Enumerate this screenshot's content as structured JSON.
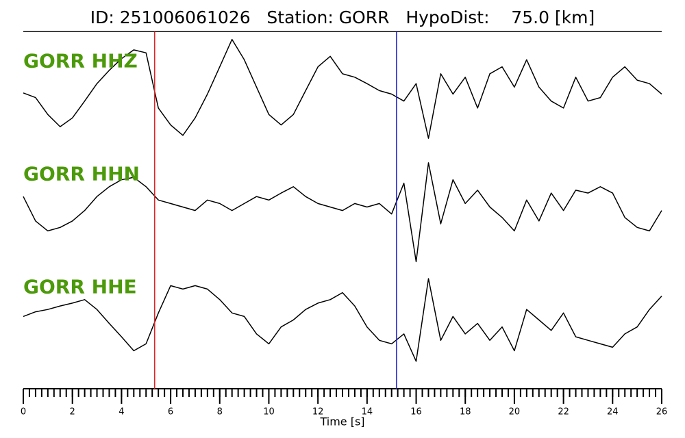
{
  "chart_data": {
    "type": "line",
    "title": "ID: 251006061026   Station: GORR   HypoDist:    75.0 [km]",
    "x_label": "Time [s]",
    "xlim": [
      0,
      26
    ],
    "xticks": [
      0,
      2,
      4,
      6,
      8,
      10,
      12,
      14,
      16,
      18,
      20,
      22,
      24,
      26
    ],
    "xminor_step": 0.25,
    "ylim": [
      -1,
      1
    ],
    "label_color": "#4c9a0a",
    "vlines": [
      {
        "x": 5.35,
        "color": "#e02020"
      },
      {
        "x": 15.2,
        "color": "#1f1fd0"
      }
    ],
    "x": [
      0,
      0.5,
      1,
      1.5,
      2,
      2.5,
      3,
      3.5,
      4,
      4.5,
      5,
      5.5,
      6,
      6.5,
      7,
      7.5,
      8,
      8.5,
      9,
      9.5,
      10,
      10.5,
      11,
      11.5,
      12,
      12.5,
      13,
      13.5,
      14,
      14.5,
      15,
      15.5,
      16,
      16.5,
      17,
      17.5,
      18,
      18.5,
      19,
      19.5,
      20,
      20.5,
      21,
      21.5,
      22,
      22.5,
      23,
      23.5,
      24,
      24.5,
      25,
      25.5,
      26
    ],
    "series": [
      {
        "name": "GORR HHZ",
        "color": "#000000",
        "values": [
          0.02,
          -0.06,
          -0.35,
          -0.56,
          -0.41,
          -0.12,
          0.18,
          0.41,
          0.61,
          0.76,
          0.71,
          -0.24,
          -0.53,
          -0.71,
          -0.41,
          0,
          0.47,
          0.94,
          0.59,
          0.12,
          -0.35,
          -0.53,
          -0.35,
          0.06,
          0.47,
          0.65,
          0.35,
          0.29,
          0.18,
          0.06,
          0,
          -0.12,
          0.18,
          -0.76,
          0.35,
          0,
          0.29,
          -0.24,
          0.35,
          0.47,
          0.12,
          0.59,
          0.12,
          -0.12,
          -0.24,
          0.29,
          -0.12,
          -0.06,
          0.29,
          0.47,
          0.24,
          0.18,
          0
        ]
      },
      {
        "name": "GORR HHN",
        "color": "#000000",
        "values": [
          0.18,
          -0.24,
          -0.41,
          -0.35,
          -0.24,
          -0.06,
          0.18,
          0.35,
          0.47,
          0.51,
          0.35,
          0.12,
          0.06,
          0,
          -0.06,
          0.12,
          0.06,
          -0.06,
          0.06,
          0.18,
          0.12,
          0.24,
          0.35,
          0.18,
          0.06,
          0,
          -0.06,
          0.06,
          0,
          0.06,
          -0.12,
          0.41,
          -0.94,
          0.76,
          -0.29,
          0.47,
          0.06,
          0.29,
          0,
          -0.18,
          -0.41,
          0.12,
          -0.24,
          0.24,
          -0.06,
          0.29,
          0.24,
          0.35,
          0.24,
          -0.18,
          -0.35,
          -0.41,
          -0.06
        ]
      },
      {
        "name": "GORR HHE",
        "color": "#000000",
        "values": [
          0.06,
          0.14,
          0.18,
          0.24,
          0.29,
          0.35,
          0.18,
          -0.06,
          -0.29,
          -0.53,
          -0.41,
          0.12,
          0.59,
          0.53,
          0.59,
          0.53,
          0.35,
          0.12,
          0.06,
          -0.24,
          -0.41,
          -0.12,
          0,
          0.18,
          0.29,
          0.35,
          0.47,
          0.24,
          -0.12,
          -0.35,
          -0.41,
          -0.24,
          -0.71,
          0.71,
          -0.35,
          0.06,
          -0.24,
          -0.06,
          -0.35,
          -0.12,
          -0.53,
          0.18,
          0,
          -0.18,
          0.12,
          -0.29,
          -0.35,
          -0.41,
          -0.47,
          -0.24,
          -0.12,
          0.18,
          0.41
        ]
      }
    ]
  }
}
